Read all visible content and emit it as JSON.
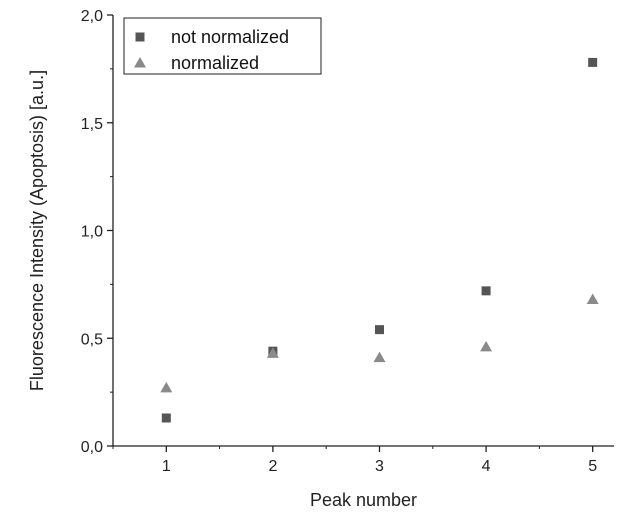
{
  "chart_data": {
    "type": "scatter",
    "xlabel": "Peak number",
    "ylabel": "Fluorescence Intensity (Apoptosis)  [a.u.]",
    "xlim": [
      0.5,
      5.2
    ],
    "ylim": [
      0,
      2.0
    ],
    "x_ticks": [
      1,
      2,
      3,
      4,
      5
    ],
    "x_tick_labels": [
      "1",
      "2",
      "3",
      "4",
      "5"
    ],
    "y_ticks": [
      0,
      0.5,
      1.0,
      1.5,
      2.0
    ],
    "y_tick_labels": [
      "0,0",
      "0,5",
      "1,0",
      "1,5",
      "2,0"
    ],
    "grid": false,
    "legend_position": "top-left",
    "series": [
      {
        "name": "not normalized",
        "marker": "square",
        "color": "#555555",
        "x": [
          1,
          2,
          3,
          4,
          5
        ],
        "y": [
          0.13,
          0.44,
          0.54,
          0.72,
          1.78
        ]
      },
      {
        "name": "normalized",
        "marker": "triangle",
        "color": "#8a8a8a",
        "x": [
          1,
          2,
          3,
          4,
          5
        ],
        "y": [
          0.27,
          0.43,
          0.41,
          0.46,
          0.68
        ]
      }
    ]
  }
}
